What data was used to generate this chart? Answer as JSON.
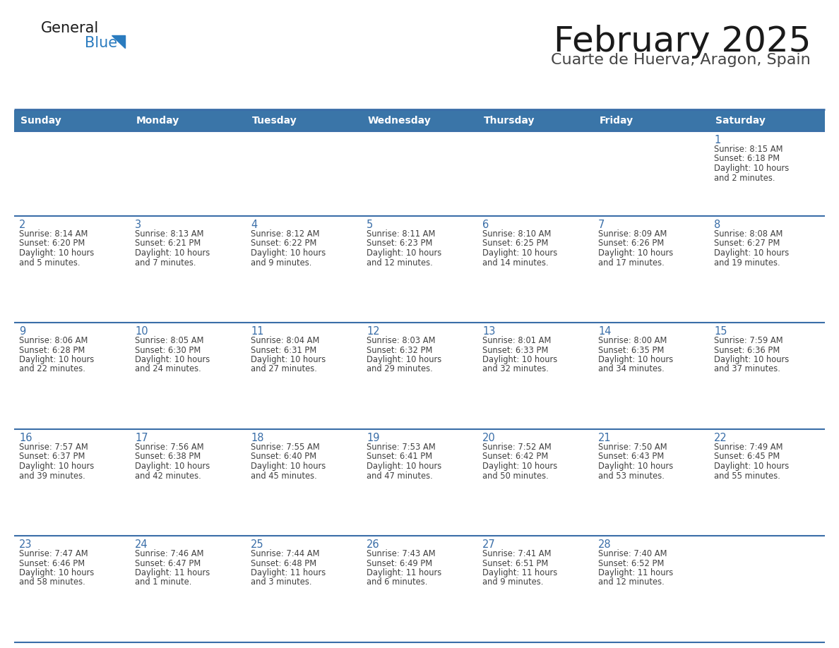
{
  "title": "February 2025",
  "subtitle": "Cuarte de Huerva, Aragon, Spain",
  "days_of_week": [
    "Sunday",
    "Monday",
    "Tuesday",
    "Wednesday",
    "Thursday",
    "Friday",
    "Saturday"
  ],
  "header_bg": "#3a75a8",
  "header_text": "#ffffff",
  "row_bg": "#ffffff",
  "row_bg_first": "#f0f0f0",
  "separator_color": "#3a6ea8",
  "day_num_color": "#3a6ea8",
  "cell_text_color": "#404040",
  "logo_general_color": "#1a1a1a",
  "logo_blue_color": "#2a7bbf",
  "calendar_data": [
    {
      "day": 1,
      "col": 6,
      "row": 0,
      "sunrise": "8:15 AM",
      "sunset": "6:18 PM",
      "daylight": "10 hours and 2 minutes."
    },
    {
      "day": 2,
      "col": 0,
      "row": 1,
      "sunrise": "8:14 AM",
      "sunset": "6:20 PM",
      "daylight": "10 hours and 5 minutes."
    },
    {
      "day": 3,
      "col": 1,
      "row": 1,
      "sunrise": "8:13 AM",
      "sunset": "6:21 PM",
      "daylight": "10 hours and 7 minutes."
    },
    {
      "day": 4,
      "col": 2,
      "row": 1,
      "sunrise": "8:12 AM",
      "sunset": "6:22 PM",
      "daylight": "10 hours and 9 minutes."
    },
    {
      "day": 5,
      "col": 3,
      "row": 1,
      "sunrise": "8:11 AM",
      "sunset": "6:23 PM",
      "daylight": "10 hours and 12 minutes."
    },
    {
      "day": 6,
      "col": 4,
      "row": 1,
      "sunrise": "8:10 AM",
      "sunset": "6:25 PM",
      "daylight": "10 hours and 14 minutes."
    },
    {
      "day": 7,
      "col": 5,
      "row": 1,
      "sunrise": "8:09 AM",
      "sunset": "6:26 PM",
      "daylight": "10 hours and 17 minutes."
    },
    {
      "day": 8,
      "col": 6,
      "row": 1,
      "sunrise": "8:08 AM",
      "sunset": "6:27 PM",
      "daylight": "10 hours and 19 minutes."
    },
    {
      "day": 9,
      "col": 0,
      "row": 2,
      "sunrise": "8:06 AM",
      "sunset": "6:28 PM",
      "daylight": "10 hours and 22 minutes."
    },
    {
      "day": 10,
      "col": 1,
      "row": 2,
      "sunrise": "8:05 AM",
      "sunset": "6:30 PM",
      "daylight": "10 hours and 24 minutes."
    },
    {
      "day": 11,
      "col": 2,
      "row": 2,
      "sunrise": "8:04 AM",
      "sunset": "6:31 PM",
      "daylight": "10 hours and 27 minutes."
    },
    {
      "day": 12,
      "col": 3,
      "row": 2,
      "sunrise": "8:03 AM",
      "sunset": "6:32 PM",
      "daylight": "10 hours and 29 minutes."
    },
    {
      "day": 13,
      "col": 4,
      "row": 2,
      "sunrise": "8:01 AM",
      "sunset": "6:33 PM",
      "daylight": "10 hours and 32 minutes."
    },
    {
      "day": 14,
      "col": 5,
      "row": 2,
      "sunrise": "8:00 AM",
      "sunset": "6:35 PM",
      "daylight": "10 hours and 34 minutes."
    },
    {
      "day": 15,
      "col": 6,
      "row": 2,
      "sunrise": "7:59 AM",
      "sunset": "6:36 PM",
      "daylight": "10 hours and 37 minutes."
    },
    {
      "day": 16,
      "col": 0,
      "row": 3,
      "sunrise": "7:57 AM",
      "sunset": "6:37 PM",
      "daylight": "10 hours and 39 minutes."
    },
    {
      "day": 17,
      "col": 1,
      "row": 3,
      "sunrise": "7:56 AM",
      "sunset": "6:38 PM",
      "daylight": "10 hours and 42 minutes."
    },
    {
      "day": 18,
      "col": 2,
      "row": 3,
      "sunrise": "7:55 AM",
      "sunset": "6:40 PM",
      "daylight": "10 hours and 45 minutes."
    },
    {
      "day": 19,
      "col": 3,
      "row": 3,
      "sunrise": "7:53 AM",
      "sunset": "6:41 PM",
      "daylight": "10 hours and 47 minutes."
    },
    {
      "day": 20,
      "col": 4,
      "row": 3,
      "sunrise": "7:52 AM",
      "sunset": "6:42 PM",
      "daylight": "10 hours and 50 minutes."
    },
    {
      "day": 21,
      "col": 5,
      "row": 3,
      "sunrise": "7:50 AM",
      "sunset": "6:43 PM",
      "daylight": "10 hours and 53 minutes."
    },
    {
      "day": 22,
      "col": 6,
      "row": 3,
      "sunrise": "7:49 AM",
      "sunset": "6:45 PM",
      "daylight": "10 hours and 55 minutes."
    },
    {
      "day": 23,
      "col": 0,
      "row": 4,
      "sunrise": "7:47 AM",
      "sunset": "6:46 PM",
      "daylight": "10 hours and 58 minutes."
    },
    {
      "day": 24,
      "col": 1,
      "row": 4,
      "sunrise": "7:46 AM",
      "sunset": "6:47 PM",
      "daylight": "11 hours and 1 minute."
    },
    {
      "day": 25,
      "col": 2,
      "row": 4,
      "sunrise": "7:44 AM",
      "sunset": "6:48 PM",
      "daylight": "11 hours and 3 minutes."
    },
    {
      "day": 26,
      "col": 3,
      "row": 4,
      "sunrise": "7:43 AM",
      "sunset": "6:49 PM",
      "daylight": "11 hours and 6 minutes."
    },
    {
      "day": 27,
      "col": 4,
      "row": 4,
      "sunrise": "7:41 AM",
      "sunset": "6:51 PM",
      "daylight": "11 hours and 9 minutes."
    },
    {
      "day": 28,
      "col": 5,
      "row": 4,
      "sunrise": "7:40 AM",
      "sunset": "6:52 PM",
      "daylight": "11 hours and 12 minutes."
    }
  ]
}
